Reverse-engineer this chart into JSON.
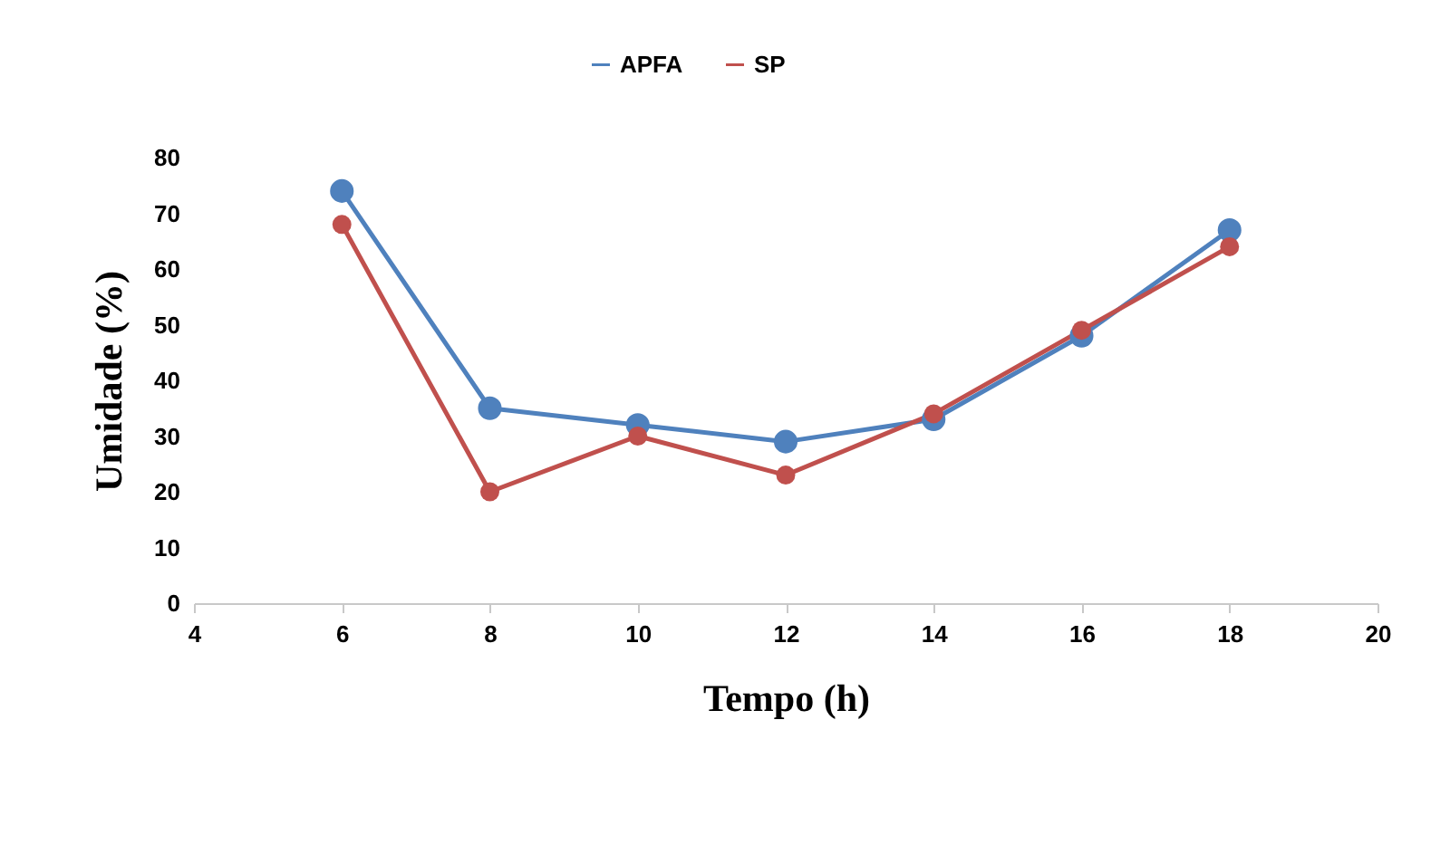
{
  "chart_data": {
    "type": "line",
    "xlabel": "Tempo (h)",
    "ylabel": "Umidade (%)",
    "x": [
      6,
      8,
      10,
      12,
      14,
      16,
      18
    ],
    "series": [
      {
        "name": "APFA",
        "color": "#4f81bd",
        "values": [
          74,
          35,
          32,
          29,
          33,
          48,
          67
        ]
      },
      {
        "name": "SP",
        "color": "#c0504d",
        "values": [
          68,
          20,
          30,
          23,
          34,
          49,
          64
        ]
      }
    ],
    "xlim": [
      4,
      20
    ],
    "xticks": [
      4,
      6,
      8,
      10,
      12,
      14,
      16,
      18,
      20
    ],
    "ylim": [
      0,
      80
    ],
    "yticks": [
      0,
      10,
      20,
      30,
      40,
      50,
      60,
      70,
      80
    ],
    "grid": false,
    "legend": "top",
    "marker": "circle",
    "line_style": "solid"
  }
}
